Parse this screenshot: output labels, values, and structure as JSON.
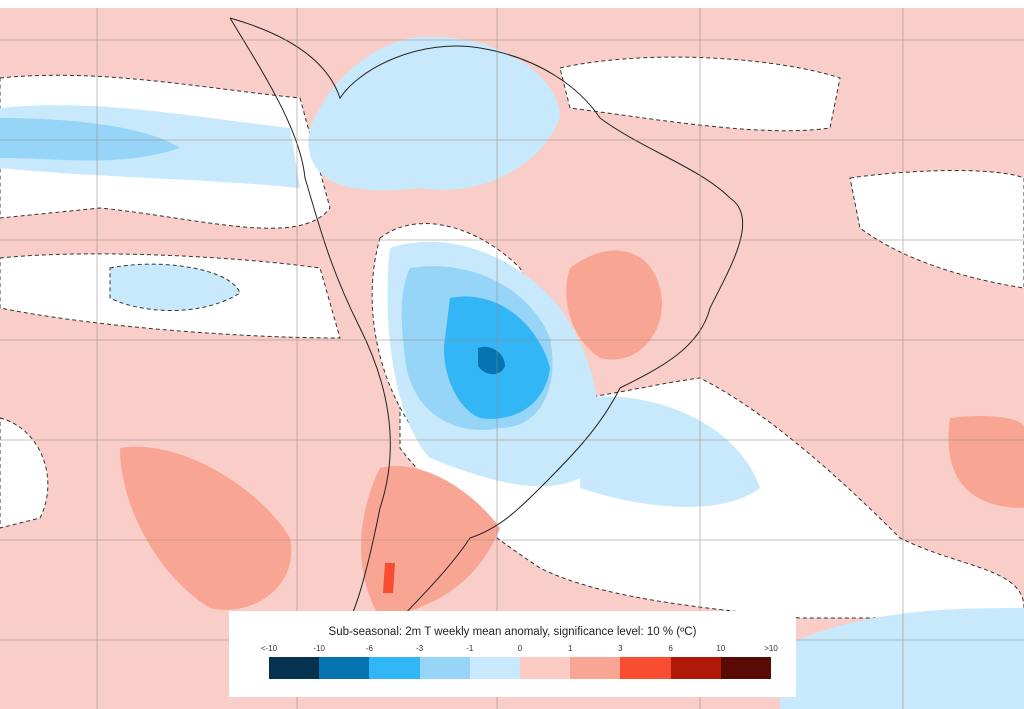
{
  "legend": {
    "title": "Sub-seasonal: 2m T weekly mean anomaly, significance level: 10 % (ºC)",
    "ticks": [
      "<-10",
      "-10",
      "-6",
      "-3",
      "-1",
      "0",
      "1",
      "3",
      "6",
      "10",
      ">10"
    ],
    "colors": [
      "#05334f",
      "#0573b0",
      "#33b6f6",
      "#96d5f8",
      "#c8e9fb",
      "#fbcbc4",
      "#f9a594",
      "#f84d30",
      "#b0190a",
      "#5a0a04"
    ]
  },
  "map": {
    "background_color": "#f9cdc8",
    "neutral_color": "#ffffff",
    "region": "South America",
    "grid": true,
    "significance_contour": "dashed"
  }
}
